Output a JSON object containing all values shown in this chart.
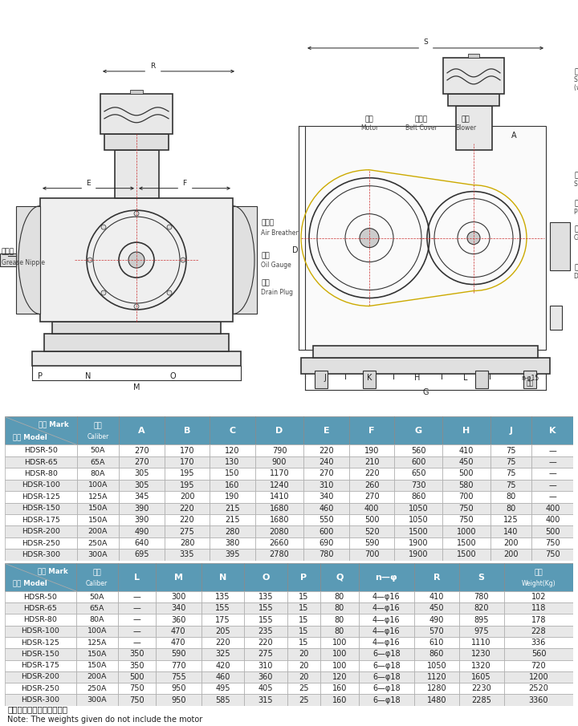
{
  "table1_data": [
    [
      "HDSR-50",
      "50A",
      "270",
      "170",
      "120",
      "790",
      "220",
      "190",
      "560",
      "410",
      "75",
      "—"
    ],
    [
      "HDSR-65",
      "65A",
      "270",
      "170",
      "130",
      "900",
      "240",
      "210",
      "600",
      "450",
      "75",
      "—"
    ],
    [
      "HDSR-80",
      "80A",
      "305",
      "195",
      "150",
      "1170",
      "270",
      "220",
      "650",
      "500",
      "75",
      "—"
    ],
    [
      "HDSR-100",
      "100A",
      "305",
      "195",
      "160",
      "1240",
      "310",
      "260",
      "730",
      "580",
      "75",
      "—"
    ],
    [
      "HDSR-125",
      "125A",
      "345",
      "200",
      "190",
      "1410",
      "340",
      "270",
      "860",
      "700",
      "80",
      "—"
    ],
    [
      "HDSR-150",
      "150A",
      "390",
      "220",
      "215",
      "1680",
      "460",
      "400",
      "1050",
      "750",
      "80",
      "400"
    ],
    [
      "HDSR-175",
      "150A",
      "390",
      "220",
      "215",
      "1680",
      "550",
      "500",
      "1050",
      "750",
      "125",
      "400"
    ],
    [
      "HDSR-200",
      "200A",
      "490",
      "275",
      "280",
      "2080",
      "600",
      "520",
      "1500",
      "1000",
      "140",
      "500"
    ],
    [
      "HDSR-250",
      "250A",
      "640",
      "280",
      "380",
      "2660",
      "690",
      "590",
      "1900",
      "1500",
      "200",
      "750"
    ],
    [
      "HDSR-300",
      "300A",
      "695",
      "335",
      "395",
      "2780",
      "780",
      "700",
      "1900",
      "1500",
      "200",
      "750"
    ]
  ],
  "table1_cols": [
    "记号 Mark\n型式 Model",
    "口径\nCaliber",
    "A",
    "B",
    "C",
    "D",
    "E",
    "F",
    "G",
    "H",
    "J",
    "K"
  ],
  "table2_data": [
    [
      "HDSR-50",
      "50A",
      "—",
      "300",
      "135",
      "135",
      "15",
      "80",
      "4—φ16",
      "410",
      "780",
      "102"
    ],
    [
      "HDSR-65",
      "65A",
      "—",
      "340",
      "155",
      "155",
      "15",
      "80",
      "4—φ16",
      "450",
      "820",
      "118"
    ],
    [
      "HDSR-80",
      "80A",
      "—",
      "360",
      "175",
      "155",
      "15",
      "80",
      "4—φ16",
      "490",
      "895",
      "178"
    ],
    [
      "HDSR-100",
      "100A",
      "—",
      "470",
      "205",
      "235",
      "15",
      "80",
      "4—φ16",
      "570",
      "975",
      "228"
    ],
    [
      "HDSR-125",
      "125A",
      "—",
      "470",
      "220",
      "220",
      "15",
      "100",
      "4—φ16",
      "610",
      "1110",
      "336"
    ],
    [
      "HDSR-150",
      "150A",
      "350",
      "590",
      "325",
      "275",
      "20",
      "100",
      "6—φ18",
      "860",
      "1230",
      "560"
    ],
    [
      "HDSR-175",
      "150A",
      "350",
      "770",
      "420",
      "310",
      "20",
      "100",
      "6—φ18",
      "1050",
      "1320",
      "720"
    ],
    [
      "HDSR-200",
      "200A",
      "500",
      "755",
      "460",
      "360",
      "20",
      "120",
      "6—φ18",
      "1120",
      "1605",
      "1200"
    ],
    [
      "HDSR-250",
      "250A",
      "750",
      "950",
      "495",
      "405",
      "25",
      "160",
      "6—φ18",
      "1280",
      "2230",
      "2520"
    ],
    [
      "HDSR-300",
      "300A",
      "750",
      "950",
      "585",
      "315",
      "25",
      "160",
      "6—φ18",
      "1480",
      "2285",
      "3360"
    ]
  ],
  "table2_cols": [
    "记号 Mark\n型式 Model",
    "口径\nCaliber",
    "L",
    "M",
    "N",
    "O",
    "P",
    "Q",
    "n—φ",
    "R",
    "S",
    "重量\nWeight(Kg)"
  ],
  "note_cn": "注：重量中不包括电机重量",
  "note_en": "Note: The weights given do not include the motor",
  "header_color": "#5a9ab5",
  "header_color2": "#7ab5cc",
  "odd_row": "#ffffff",
  "even_row": "#ebebeb",
  "border": "#b0b0b0"
}
